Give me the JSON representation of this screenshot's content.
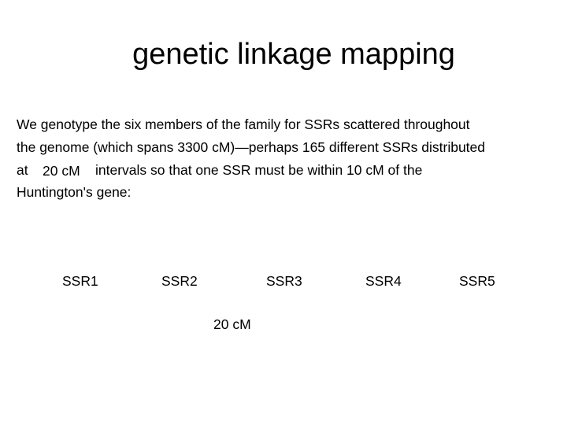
{
  "slide": {
    "title": "genetic linkage mapping",
    "body": {
      "line1": "We genotype the six members of the family for SSRs scattered throughout",
      "line2": "the genome (which spans 3300 cM)—perhaps 165 different SSRs distributed",
      "line3_prefix": "at",
      "line3_interval": "20 cM",
      "line3_suffix": "intervals so that  one SSR must be within 10 cM of the",
      "line4": "Huntington's gene:"
    },
    "diagram": {
      "markers": [
        "SSR1",
        "SSR2",
        "SSR3",
        "SSR4",
        "SSR5"
      ],
      "interval_label": "20 cM"
    }
  }
}
